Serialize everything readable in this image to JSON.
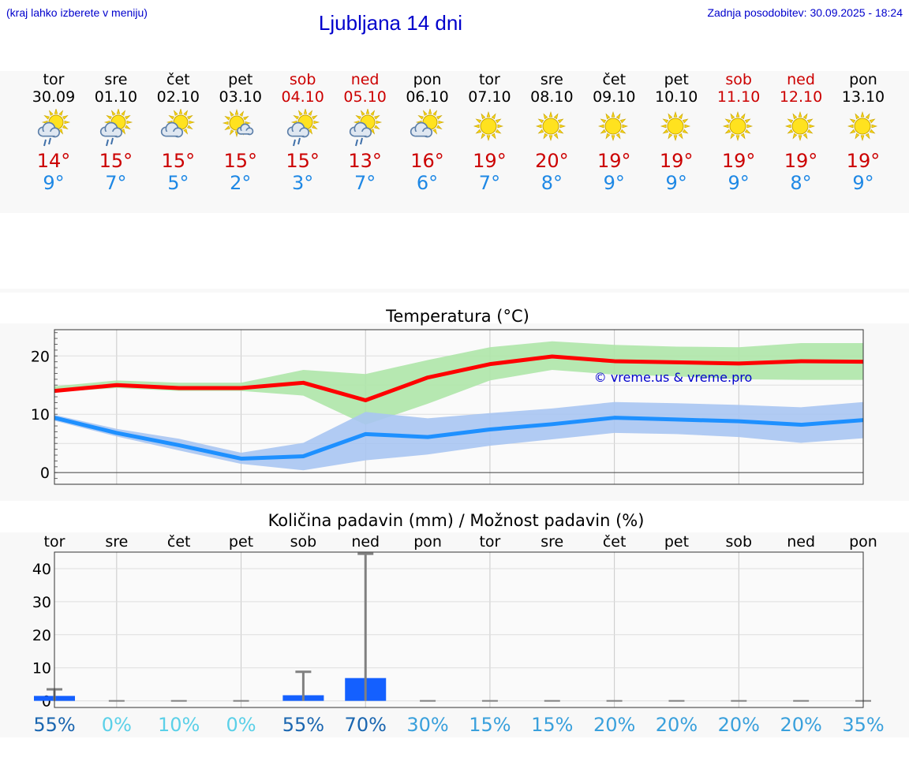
{
  "header": {
    "left_note": "(kraj lahko izberete v meniju)",
    "title": "Ljubljana 14 dni",
    "right_note": "Zadnja posodobitev: 30.09.2025 - 18:24"
  },
  "days": [
    {
      "name": "tor",
      "date": "30.09",
      "weekend": false,
      "icon": "sun-cloud-rain-icon",
      "tmax": "14°",
      "tmin": "9°"
    },
    {
      "name": "sre",
      "date": "01.10",
      "weekend": false,
      "icon": "sun-cloud-rain-icon",
      "tmax": "15°",
      "tmin": "7°"
    },
    {
      "name": "čet",
      "date": "02.10",
      "weekend": false,
      "icon": "sun-cloud-icon",
      "tmax": "15°",
      "tmin": "5°"
    },
    {
      "name": "pet",
      "date": "03.10",
      "weekend": false,
      "icon": "sun-small-cloud-icon",
      "tmax": "15°",
      "tmin": "2°"
    },
    {
      "name": "sob",
      "date": "04.10",
      "weekend": true,
      "icon": "sun-cloud-rain-icon",
      "tmax": "15°",
      "tmin": "3°"
    },
    {
      "name": "ned",
      "date": "05.10",
      "weekend": true,
      "icon": "sun-cloud-rain-icon",
      "tmax": "13°",
      "tmin": "7°"
    },
    {
      "name": "pon",
      "date": "06.10",
      "weekend": false,
      "icon": "sun-cloud-icon",
      "tmax": "16°",
      "tmin": "6°"
    },
    {
      "name": "tor",
      "date": "07.10",
      "weekend": false,
      "icon": "sun-icon",
      "tmax": "19°",
      "tmin": "7°"
    },
    {
      "name": "sre",
      "date": "08.10",
      "weekend": false,
      "icon": "sun-icon",
      "tmax": "20°",
      "tmin": "8°"
    },
    {
      "name": "čet",
      "date": "09.10",
      "weekend": false,
      "icon": "sun-icon",
      "tmax": "19°",
      "tmin": "9°"
    },
    {
      "name": "pet",
      "date": "10.10",
      "weekend": false,
      "icon": "sun-icon",
      "tmax": "19°",
      "tmin": "9°"
    },
    {
      "name": "sob",
      "date": "11.10",
      "weekend": true,
      "icon": "sun-icon",
      "tmax": "19°",
      "tmin": "9°"
    },
    {
      "name": "ned",
      "date": "12.10",
      "weekend": true,
      "icon": "sun-icon",
      "tmax": "19°",
      "tmin": "8°"
    },
    {
      "name": "pon",
      "date": "13.10",
      "weekend": false,
      "icon": "sun-icon",
      "tmax": "19°",
      "tmin": "9°"
    }
  ],
  "chart_data": [
    {
      "type": "line",
      "title": "Temperatura (°C)",
      "watermark": "© vreme.us & vreme.pro",
      "x_count": 14,
      "ylim": [
        -2,
        24.5
      ],
      "yticks": [
        0,
        10,
        20
      ],
      "series": [
        {
          "name": "max",
          "color": "#ff0000",
          "values": [
            14,
            15,
            14.5,
            14.5,
            15.4,
            12.4,
            16.3,
            18.6,
            19.9,
            19.1,
            18.9,
            18.7,
            19.1,
            19
          ]
        },
        {
          "name": "min",
          "color": "#1e90ff",
          "values": [
            9.4,
            6.8,
            4.7,
            2.4,
            2.8,
            6.6,
            6.1,
            7.4,
            8.3,
            9.4,
            9.1,
            8.8,
            8.2,
            9
          ]
        }
      ],
      "bands": [
        {
          "name": "max-range",
          "color": "#aee6a8",
          "low": [
            13.8,
            14.5,
            14,
            14,
            13.2,
            8.2,
            11.8,
            15.8,
            17.6,
            16.8,
            16.5,
            16,
            15.9,
            15.9
          ],
          "high": [
            14.8,
            15.8,
            15.4,
            15.4,
            17.6,
            16.9,
            19.3,
            21.5,
            22.5,
            21.9,
            21.6,
            21.5,
            22.2,
            22.2
          ]
        },
        {
          "name": "min-range",
          "color": "#a9c5f2",
          "low": [
            8.9,
            6.2,
            3.8,
            1.5,
            0.4,
            2.1,
            3.1,
            4.6,
            5.7,
            6.8,
            6.6,
            6.1,
            5.1,
            5.9
          ],
          "high": [
            9.9,
            7.5,
            5.8,
            3.4,
            5.1,
            10.4,
            9.3,
            10.2,
            11,
            12.1,
            11.9,
            11.6,
            11.2,
            12.1
          ]
        }
      ]
    },
    {
      "type": "bar",
      "title": "Količina padavin (mm) / Možnost padavin (%)",
      "categories": [
        "tor",
        "sre",
        "čet",
        "pet",
        "sob",
        "ned",
        "pon",
        "tor",
        "sre",
        "čet",
        "pet",
        "sob",
        "ned",
        "pon"
      ],
      "values": [
        1.5,
        0,
        0,
        0,
        1.7,
        6.9,
        0,
        0,
        0,
        0,
        0,
        0,
        0,
        0
      ],
      "error_max": [
        3.5,
        0.2,
        0,
        0,
        8.8,
        44.5,
        0,
        0,
        0,
        0,
        0,
        0,
        0,
        0
      ],
      "ylim": [
        -2,
        45
      ],
      "yticks": [
        0,
        10,
        20,
        30,
        40
      ],
      "bar_color": "#1460ff",
      "probability": [
        "55%",
        "0%",
        "10%",
        "0%",
        "55%",
        "70%",
        "30%",
        "15%",
        "15%",
        "20%",
        "20%",
        "20%",
        "20%",
        "35%"
      ],
      "probability_colors": [
        "#1a66b0",
        "#5bd0e8",
        "#5bd0e8",
        "#5bd0e8",
        "#1a66b0",
        "#1a66b0",
        "#39a0dc",
        "#39a0dc",
        "#39a0dc",
        "#39a0dc",
        "#39a0dc",
        "#39a0dc",
        "#39a0dc",
        "#39a0dc"
      ]
    }
  ]
}
